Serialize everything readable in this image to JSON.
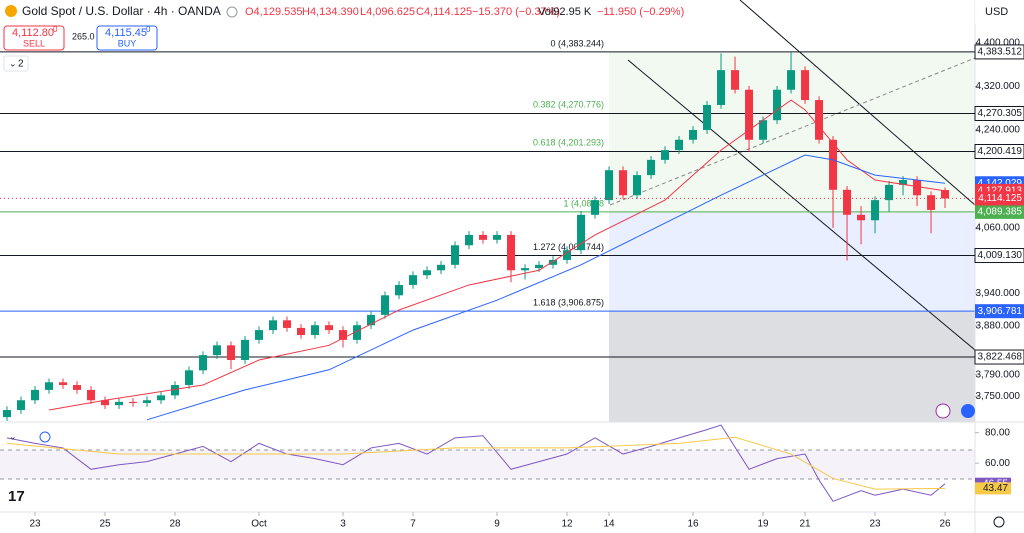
{
  "header": {
    "title": "Gold Spot / U.S. Dollar · 4h · OANDA",
    "open": "O4,129.535",
    "high": "H4,134.390",
    "low": "L4,096.625",
    "close": "C4,114.125",
    "change": "−15.370 (−0.37%)",
    "volume": "Vol92.95 K",
    "volume_change": "−11.950 (−0.29%)",
    "sell_price": "4,112.80",
    "sell_sup": "0",
    "sell_label": "SELL",
    "spread": "265.0",
    "buy_price": "4,115.45",
    "buy_sup": "0",
    "buy_label": "BUY",
    "badge": "2",
    "currency": "USD"
  },
  "chart_data": [
    {
      "type": "candlestick",
      "up_color": "#089981",
      "down_color": "#f23645",
      "xlim": [
        -0.5,
        69.14
      ],
      "xticks": [
        {
          "value": 2,
          "label": "23"
        },
        {
          "value": 7,
          "label": "25"
        },
        {
          "value": 12,
          "label": "28"
        },
        {
          "value": 18,
          "label": "Oct"
        },
        {
          "value": 24,
          "label": "3"
        },
        {
          "value": 29,
          "label": "7"
        },
        {
          "value": 35,
          "label": "9"
        },
        {
          "value": 40,
          "label": "12"
        },
        {
          "value": 43,
          "label": "14"
        },
        {
          "value": 49,
          "label": "16"
        },
        {
          "value": 54,
          "label": "19"
        },
        {
          "value": 57,
          "label": "21"
        },
        {
          "value": 62,
          "label": "23"
        },
        {
          "value": 67,
          "label": "26"
        }
      ],
      "ylim": [
        3703,
        4479
      ],
      "yticks": [
        {
          "value": 4400,
          "label": "4,400.000"
        },
        {
          "value": 4320,
          "label": "4,320.000"
        },
        {
          "value": 4240,
          "label": "4,240.000"
        },
        {
          "value": 4060,
          "label": "4,060.000"
        },
        {
          "value": 3940,
          "label": "3,940.000"
        },
        {
          "value": 3880,
          "label": "3,880.000"
        },
        {
          "value": 3790,
          "label": "3,790.000"
        },
        {
          "value": 3750,
          "label": "3,750.000"
        }
      ],
      "open": [
        3712,
        3725,
        3743,
        3762,
        3776,
        3771,
        3762,
        3743,
        3734,
        3740,
        3738,
        3743,
        3752,
        3771,
        3798,
        3826,
        3844,
        3817,
        3854,
        3872,
        3890,
        3876,
        3863,
        3881,
        3872,
        3854,
        3881,
        3900,
        3936,
        3955,
        3973,
        3982,
        3992,
        4028,
        4047,
        4038,
        4047,
        3982,
        3986,
        3992,
        4001,
        4019,
        4084,
        4111,
        4166,
        4120,
        4157,
        4185,
        4203,
        4222,
        4240,
        4286,
        4350,
        4314,
        4222,
        4258,
        4314,
        4350,
        4295,
        4222,
        4130,
        4084,
        4074,
        4111,
        4139,
        4148,
        4120,
        4129.535
      ],
      "high": [
        3732,
        3750,
        3769,
        3783,
        3783,
        3778,
        3769,
        3750,
        3747,
        3747,
        3750,
        3759,
        3778,
        3805,
        3833,
        3851,
        3851,
        3861,
        3879,
        3897,
        3897,
        3883,
        3888,
        3888,
        3879,
        3888,
        3907,
        3943,
        3962,
        3980,
        3989,
        3999,
        4035,
        4054,
        4054,
        4054,
        4054,
        3993,
        3999,
        4008,
        4026,
        4091,
        4118,
        4173,
        4173,
        4164,
        4192,
        4210,
        4229,
        4247,
        4293,
        4381,
        4375,
        4321,
        4265,
        4321,
        4383,
        4357,
        4302,
        4229,
        4137,
        4100,
        4118,
        4146,
        4155,
        4155,
        4127,
        4134.39
      ],
      "low": [
        3705,
        3718,
        3736,
        3755,
        3764,
        3755,
        3736,
        3727,
        3727,
        3731,
        3731,
        3736,
        3745,
        3764,
        3791,
        3819,
        3800,
        3810,
        3847,
        3865,
        3869,
        3856,
        3856,
        3865,
        3840,
        3847,
        3874,
        3893,
        3929,
        3948,
        3966,
        3975,
        3985,
        4021,
        4031,
        4031,
        3960,
        3965,
        3979,
        3985,
        3994,
        4012,
        4077,
        4104,
        4113,
        4113,
        4150,
        4178,
        4196,
        4215,
        4233,
        4279,
        4307,
        4200,
        4215,
        4251,
        4307,
        4288,
        4215,
        4060,
        4000,
        4030,
        4050,
        4090,
        4120,
        4100,
        4050,
        4096.625
      ],
      "close": [
        3725,
        3743,
        3762,
        3776,
        3771,
        3762,
        3743,
        3734,
        3740,
        3738,
        3743,
        3752,
        3771,
        3798,
        3826,
        3844,
        3817,
        3854,
        3872,
        3890,
        3876,
        3863,
        3881,
        3872,
        3854,
        3881,
        3900,
        3936,
        3955,
        3973,
        3982,
        3992,
        4028,
        4047,
        4038,
        4047,
        3982,
        3986,
        3992,
        4001,
        4019,
        4084,
        4111,
        4166,
        4120,
        4157,
        4185,
        4203,
        4222,
        4240,
        4286,
        4350,
        4314,
        4222,
        4258,
        4314,
        4350,
        4295,
        4222,
        4130,
        4084,
        4074,
        4111,
        4139,
        4148,
        4120,
        4093,
        4114.125
      ],
      "series": [
        {
          "color": "#f23645",
          "x": [
            3,
            7,
            14,
            18,
            23,
            28,
            33,
            38,
            42,
            47,
            51,
            56,
            57,
            60,
            62,
            67
          ],
          "values": [
            3725,
            3743,
            3771,
            3817,
            3844,
            3909,
            3955,
            3982,
            4047,
            4111,
            4203,
            4295,
            4277,
            4185,
            4148,
            4127.913
          ]
        },
        {
          "color": "#2962ff",
          "x": [
            10,
            17,
            23,
            29,
            35,
            41,
            46,
            51,
            54,
            57,
            59,
            62,
            67
          ],
          "values": [
            3707,
            3762,
            3799,
            3872,
            3927,
            3992,
            4056,
            4120,
            4157,
            4194,
            4185,
            4157,
            4142.029
          ]
        }
      ],
      "levels": [
        {
          "value": 4383.512,
          "label": "4,383.512",
          "color": "#131722"
        },
        {
          "value": 4270.305,
          "label": "4,270.305",
          "color": "#131722"
        },
        {
          "value": 4200.419,
          "label": "4,200.419",
          "color": "#131722"
        },
        {
          "value": 4089.385,
          "label": "4,089.385",
          "color": "#4caf50"
        },
        {
          "value": 4009.13,
          "label": "4,009.130",
          "color": "#131722"
        },
        {
          "value": 3906.781,
          "label": "3,906.781",
          "color": "#2962ff"
        },
        {
          "value": 3822.468,
          "label": "3,822.468",
          "color": "#131722"
        }
      ],
      "markers": [
        {
          "value": 4142.029,
          "label": "4,142.029",
          "color": "#2962ff"
        },
        {
          "value": 4127.913,
          "label": "4,127.913",
          "color": "#f23645"
        },
        {
          "value": 4114.125,
          "label": "4,114.125",
          "color": "#f23645"
        }
      ],
      "fib_levels": [
        {
          "value": 4383.244,
          "label": "0 (4,383.244)"
        },
        {
          "value": 4270.776,
          "label": "0.382 (4,270.776)"
        },
        {
          "value": 4201.293,
          "label": "0.618 (4,201.293)"
        },
        {
          "value": 4088.8,
          "label": "1 (4,088.8"
        },
        {
          "value": 4008.744,
          "label": "1.272 (4,008.744)"
        },
        {
          "value": 3906.875,
          "label": "1.618 (3,906.875)"
        }
      ]
    },
    {
      "type": "line",
      "xlim": [
        -0.5,
        69.14
      ],
      "ylim": [
        28,
        87
      ],
      "yticks": [
        {
          "value": 80,
          "label": "80.00"
        },
        {
          "value": 60,
          "label": "60.00"
        }
      ],
      "series": [
        {
          "color": "#7e57c2",
          "x": [
            0,
            2,
            4,
            6,
            8,
            10,
            12,
            14,
            16,
            18,
            20,
            22,
            24,
            26,
            28,
            30,
            32,
            34,
            36,
            38,
            40,
            42,
            44,
            46,
            48,
            50,
            51,
            53,
            55,
            57,
            58,
            59,
            61,
            62,
            64,
            66,
            67
          ],
          "values": [
            76.6,
            73,
            70,
            56,
            59,
            61,
            66,
            71,
            61,
            73,
            66,
            63,
            59,
            70,
            73,
            66,
            76.6,
            78,
            56,
            61,
            66,
            76.6,
            66,
            71,
            76.6,
            82,
            85,
            56,
            63,
            66,
            49,
            35,
            42,
            39,
            43,
            39,
            46.55
          ]
        },
        {
          "color": "#f7c948",
          "x": [
            0,
            8,
            16,
            24,
            32,
            40,
            48,
            52,
            56,
            59,
            62,
            67
          ],
          "values": [
            73,
            66,
            66,
            66,
            70,
            70,
            73,
            77,
            66,
            50,
            43,
            43.47
          ]
        }
      ],
      "markers": [
        {
          "value": 46.55,
          "color": "#7e57c2"
        },
        {
          "value": 43.47,
          "color": "#f7c948"
        }
      ]
    }
  ]
}
